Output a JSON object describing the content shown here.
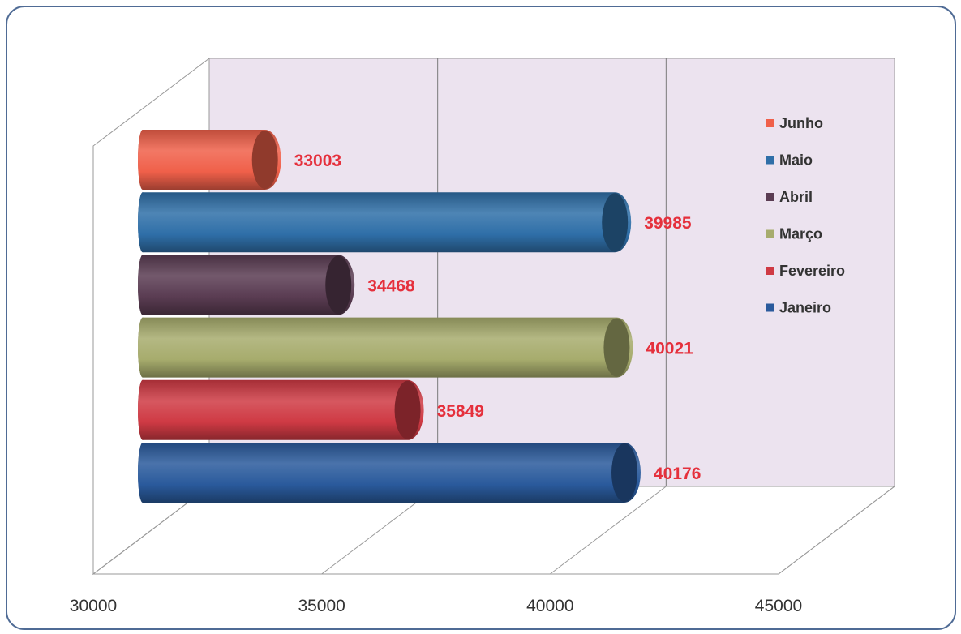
{
  "chart_data": {
    "type": "bar",
    "orientation": "horizontal",
    "shape": "3d-cylinder",
    "grid": true,
    "legend_position": "right",
    "xlim": [
      30000,
      45000
    ],
    "x_ticks": [
      "30000",
      "35000",
      "40000",
      "45000"
    ],
    "series": [
      {
        "name": "Janeiro",
        "value": 40176,
        "label": "40176",
        "color": "#2a5a9c"
      },
      {
        "name": "Fevereiro",
        "value": 35849,
        "label": "35849",
        "color": "#cf3a44"
      },
      {
        "name": "Março",
        "value": 40021,
        "label": "40021",
        "color": "#a7ac6d"
      },
      {
        "name": "Abril",
        "value": 34468,
        "label": "34468",
        "color": "#5a3c52"
      },
      {
        "name": "Maio",
        "value": 39985,
        "label": "39985",
        "color": "#2f6fa8"
      },
      {
        "name": "Junho",
        "value": 33003,
        "label": "33003",
        "color": "#f0604a"
      }
    ],
    "legend_order": [
      "Junho",
      "Maio",
      "Abril",
      "Março",
      "Fevereiro",
      "Janeiro"
    ]
  }
}
